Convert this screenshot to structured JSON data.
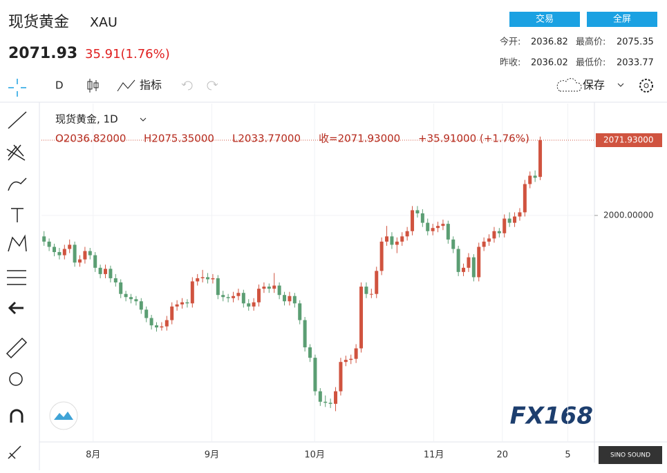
{
  "header": {
    "title": "现货黄金",
    "symbol": "XAU",
    "price": "2071.93",
    "change": "35.91(1.76%)",
    "buttons": [
      "交易",
      "全屏"
    ],
    "stats": [
      [
        "今开:",
        "2036.82",
        "最高价:",
        "2075.35"
      ],
      [
        "昨收:",
        "2036.02",
        "最低价:",
        "2033.77"
      ]
    ]
  },
  "toolbar": {
    "interval": "D",
    "indicators": "指标",
    "save": "保存"
  },
  "watermark": "FX168",
  "badge": "SINO SOUND",
  "chart_data": {
    "type": "candlestick",
    "legend": {
      "name": "现货黄金, 1D",
      "open": "O2036.82000",
      "high": "H2075.35000",
      "low": "L2033.77000",
      "close": "收=2071.93000",
      "change": "+35.91000 (+1.76%)"
    },
    "up_color": "#d0533f",
    "down_color": "#5b9e73",
    "candles": [
      [
        1980,
        1985,
        1971,
        1975
      ],
      [
        1975,
        1978,
        1966,
        1970
      ],
      [
        1970,
        1973,
        1961,
        1965
      ],
      [
        1965,
        1969,
        1958,
        1962
      ],
      [
        1962,
        1972,
        1958,
        1968
      ],
      [
        1968,
        1977,
        1964,
        1972
      ],
      [
        1972,
        1975,
        1951,
        1955
      ],
      [
        1955,
        1962,
        1951,
        1958
      ],
      [
        1958,
        1970,
        1954,
        1966
      ],
      [
        1966,
        1969,
        1958,
        1962
      ],
      [
        1962,
        1965,
        1946,
        1950
      ],
      [
        1950,
        1953,
        1940,
        1944
      ],
      [
        1944,
        1953,
        1940,
        1949
      ],
      [
        1949,
        1952,
        1936,
        1940
      ],
      [
        1940,
        1944,
        1932,
        1936
      ],
      [
        1936,
        1939,
        1921,
        1925
      ],
      [
        1925,
        1928,
        1918,
        1922
      ],
      [
        1922,
        1925,
        1916,
        1920
      ],
      [
        1920,
        1923,
        1914,
        1918
      ],
      [
        1918,
        1921,
        1906,
        1910
      ],
      [
        1910,
        1913,
        1898,
        1902
      ],
      [
        1902,
        1905,
        1891,
        1895
      ],
      [
        1895,
        1898,
        1889,
        1893
      ],
      [
        1893,
        1898,
        1890,
        1894
      ],
      [
        1894,
        1904,
        1890,
        1900
      ],
      [
        1900,
        1917,
        1896,
        1913
      ],
      [
        1913,
        1919,
        1909,
        1915
      ],
      [
        1915,
        1921,
        1911,
        1917
      ],
      [
        1917,
        1920,
        1912,
        1916
      ],
      [
        1916,
        1941,
        1912,
        1937
      ],
      [
        1937,
        1944,
        1933,
        1940
      ],
      [
        1940,
        1948,
        1936,
        1941
      ],
      [
        1941,
        1945,
        1935,
        1939
      ],
      [
        1939,
        1944,
        1935,
        1940
      ],
      [
        1940,
        1943,
        1920,
        1924
      ],
      [
        1924,
        1928,
        1918,
        1922
      ],
      [
        1922,
        1925,
        1917,
        1921
      ],
      [
        1921,
        1927,
        1917,
        1923
      ],
      [
        1923,
        1930,
        1919,
        1926
      ],
      [
        1926,
        1929,
        1912,
        1916
      ],
      [
        1916,
        1920,
        1909,
        1913
      ],
      [
        1913,
        1921,
        1909,
        1917
      ],
      [
        1917,
        1934,
        1913,
        1930
      ],
      [
        1930,
        1936,
        1926,
        1932
      ],
      [
        1932,
        1935,
        1926,
        1930
      ],
      [
        1930,
        1945,
        1926,
        1933
      ],
      [
        1933,
        1936,
        1920,
        1924
      ],
      [
        1924,
        1927,
        1914,
        1918
      ],
      [
        1918,
        1927,
        1914,
        1923
      ],
      [
        1923,
        1926,
        1912,
        1916
      ],
      [
        1916,
        1919,
        1896,
        1900
      ],
      [
        1900,
        1903,
        1870,
        1874
      ],
      [
        1874,
        1877,
        1860,
        1864
      ],
      [
        1864,
        1867,
        1828,
        1832
      ],
      [
        1832,
        1835,
        1818,
        1822
      ],
      [
        1822,
        1828,
        1817,
        1821
      ],
      [
        1821,
        1825,
        1816,
        1820
      ],
      [
        1820,
        1836,
        1813,
        1832
      ],
      [
        1832,
        1864,
        1828,
        1860
      ],
      [
        1860,
        1866,
        1856,
        1862
      ],
      [
        1862,
        1867,
        1858,
        1863
      ],
      [
        1863,
        1877,
        1859,
        1873
      ],
      [
        1873,
        1936,
        1869,
        1932
      ],
      [
        1932,
        1936,
        1921,
        1925
      ],
      [
        1925,
        1930,
        1921,
        1925
      ],
      [
        1925,
        1951,
        1921,
        1947
      ],
      [
        1947,
        1979,
        1943,
        1975
      ],
      [
        1975,
        1990,
        1971,
        1980
      ],
      [
        1980,
        1984,
        1968,
        1972
      ],
      [
        1972,
        1979,
        1964,
        1975
      ],
      [
        1975,
        1984,
        1971,
        1980
      ],
      [
        1980,
        1989,
        1976,
        1985
      ],
      [
        1985,
        2009,
        1981,
        2005
      ],
      [
        2005,
        2009,
        1998,
        2002
      ],
      [
        2002,
        2006,
        1989,
        1993
      ],
      [
        1993,
        1997,
        1981,
        1985
      ],
      [
        1985,
        1992,
        1981,
        1988
      ],
      [
        1988,
        1994,
        1984,
        1990
      ],
      [
        1990,
        1996,
        1986,
        1992
      ],
      [
        1992,
        1995,
        1973,
        1977
      ],
      [
        1977,
        1980,
        1964,
        1968
      ],
      [
        1968,
        1971,
        1942,
        1946
      ],
      [
        1946,
        1954,
        1942,
        1950
      ],
      [
        1950,
        1964,
        1946,
        1960
      ],
      [
        1960,
        1963,
        1937,
        1941
      ],
      [
        1941,
        1974,
        1937,
        1970
      ],
      [
        1970,
        1979,
        1966,
        1975
      ],
      [
        1975,
        1982,
        1971,
        1978
      ],
      [
        1978,
        1989,
        1974,
        1985
      ],
      [
        1985,
        1988,
        1979,
        1983
      ],
      [
        1983,
        2001,
        1979,
        1997
      ],
      [
        1997,
        2003,
        1989,
        1993
      ],
      [
        1993,
        2003,
        1989,
        1999
      ],
      [
        1999,
        2007,
        1995,
        2003
      ],
      [
        2003,
        2034,
        1999,
        2030
      ],
      [
        2030,
        2042,
        2026,
        2038
      ],
      [
        2038,
        2043,
        2032,
        2036.02
      ],
      [
        2036.82,
        2075.35,
        2033.77,
        2071.93
      ]
    ],
    "xlim": [
      -0.5,
      107.6
    ],
    "xticks": [
      {
        "value": 9.6,
        "label": "8月"
      },
      {
        "value": 32.8,
        "label": "9月"
      },
      {
        "value": 52.9,
        "label": "10月"
      },
      {
        "value": 76.2,
        "label": "11月"
      },
      {
        "value": 89.6,
        "label": "20"
      },
      {
        "value": 102.4,
        "label": "5"
      }
    ],
    "ylim": [
      1783.6,
      2106.9
    ],
    "yticks": [
      {
        "value": 2000,
        "label": "2000.00000"
      }
    ],
    "last_price": {
      "value": 2071.93,
      "label": "2071.93000",
      "color": "#d0533f"
    },
    "grid": true
  }
}
